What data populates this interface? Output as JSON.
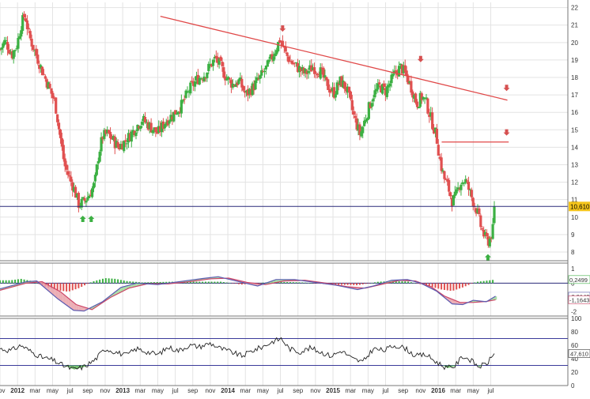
{
  "chart_data": {
    "type": "candlestick",
    "colors": {
      "up": "#3cb043",
      "down": "#e05050",
      "trend": "#e04848",
      "support": "#2a2a7a",
      "macd_line": "#5a5ab0",
      "signal_line": "#cc4466",
      "rsi_line": "#222222",
      "rsi_band": "#3a3a9a"
    },
    "x_ticks": [
      "nov",
      "2012",
      "mar",
      "may",
      "jul",
      "sep",
      "nov",
      "2013",
      "mar",
      "may",
      "jul",
      "sep",
      "nov",
      "2014",
      "mar",
      "may",
      "jul",
      "sep",
      "nov",
      "2015",
      "mar",
      "may",
      "jul",
      "sep",
      "nov",
      "2016",
      "mar",
      "may",
      "jul"
    ],
    "x_range_months": [
      -2,
      19.6
    ],
    "price_panel": {
      "y_ticks": [
        "8",
        "9",
        "10",
        "11",
        "12",
        "13",
        "14",
        "15",
        "16",
        "17",
        "18",
        "19",
        "20",
        "21",
        "22"
      ],
      "y_range": [
        7.5,
        22.3
      ],
      "last_value": "10,610",
      "last_value_num": 10.61,
      "support_level": 10.61,
      "trendline": {
        "x_start": 4.1,
        "y_start": 21.5,
        "x_end": 17.3,
        "y_end": 16.7
      },
      "horizontal_resistance": {
        "x_start": 14.8,
        "x_end": 17.35,
        "level": 14.3
      },
      "down_arrows": [
        {
          "x": 8.75,
          "y": 20.8
        },
        {
          "x": 14.0,
          "y": 19.05
        },
        {
          "x": 17.27,
          "y": 17.4
        },
        {
          "x": 17.27,
          "y": 14.85
        }
      ],
      "up_arrows": [
        {
          "x": 1.15,
          "y": 9.9
        },
        {
          "x": 1.47,
          "y": 9.9
        },
        {
          "x": 16.56,
          "y": 7.7
        }
      ],
      "key_closes": [
        {
          "x": -2,
          "y": 19.6
        },
        {
          "x": -1.8,
          "y": 20.1
        },
        {
          "x": -1.55,
          "y": 19.3
        },
        {
          "x": -1.35,
          "y": 19.9
        },
        {
          "x": -1.2,
          "y": 21.0
        },
        {
          "x": -1.05,
          "y": 21.6
        },
        {
          "x": -0.9,
          "y": 20.4
        },
        {
          "x": -0.65,
          "y": 19.4
        },
        {
          "x": -0.35,
          "y": 18.2
        },
        {
          "x": -0.1,
          "y": 17.3
        },
        {
          "x": 0.1,
          "y": 16.5
        },
        {
          "x": 0.3,
          "y": 14.5
        },
        {
          "x": 0.45,
          "y": 13.0
        },
        {
          "x": 0.65,
          "y": 12.2
        },
        {
          "x": 0.8,
          "y": 11.7
        },
        {
          "x": 1.0,
          "y": 10.7
        },
        {
          "x": 1.2,
          "y": 10.9
        },
        {
          "x": 1.4,
          "y": 11.3
        },
        {
          "x": 1.6,
          "y": 11.9
        },
        {
          "x": 1.75,
          "y": 13.6
        },
        {
          "x": 1.9,
          "y": 14.6
        },
        {
          "x": 2.1,
          "y": 14.8
        },
        {
          "x": 2.3,
          "y": 14.4
        },
        {
          "x": 2.5,
          "y": 14.0
        },
        {
          "x": 2.8,
          "y": 14.4
        },
        {
          "x": 3.1,
          "y": 15.0
        },
        {
          "x": 3.4,
          "y": 15.6
        },
        {
          "x": 3.7,
          "y": 15.2
        },
        {
          "x": 4.0,
          "y": 14.8
        },
        {
          "x": 4.3,
          "y": 15.5
        },
        {
          "x": 4.6,
          "y": 15.9
        },
        {
          "x": 4.9,
          "y": 16.4
        },
        {
          "x": 5.2,
          "y": 17.3
        },
        {
          "x": 5.5,
          "y": 17.9
        },
        {
          "x": 5.8,
          "y": 18.2
        },
        {
          "x": 6.0,
          "y": 18.7
        },
        {
          "x": 6.2,
          "y": 19.1
        },
        {
          "x": 6.4,
          "y": 18.6
        },
        {
          "x": 6.6,
          "y": 18.0
        },
        {
          "x": 6.85,
          "y": 17.6
        },
        {
          "x": 7.1,
          "y": 17.8
        },
        {
          "x": 7.35,
          "y": 17.0
        },
        {
          "x": 7.6,
          "y": 17.4
        },
        {
          "x": 7.9,
          "y": 18.0
        },
        {
          "x": 8.2,
          "y": 18.7
        },
        {
          "x": 8.45,
          "y": 19.5
        },
        {
          "x": 8.65,
          "y": 20.2
        },
        {
          "x": 8.85,
          "y": 19.4
        },
        {
          "x": 9.05,
          "y": 18.9
        },
        {
          "x": 9.3,
          "y": 18.6
        },
        {
          "x": 9.6,
          "y": 18.2
        },
        {
          "x": 9.9,
          "y": 18.6
        },
        {
          "x": 10.2,
          "y": 18.3
        },
        {
          "x": 10.45,
          "y": 17.5
        },
        {
          "x": 10.7,
          "y": 17.1
        },
        {
          "x": 10.95,
          "y": 17.8
        },
        {
          "x": 11.2,
          "y": 17.3
        },
        {
          "x": 11.45,
          "y": 15.8
        },
        {
          "x": 11.7,
          "y": 14.7
        },
        {
          "x": 11.95,
          "y": 15.9
        },
        {
          "x": 12.2,
          "y": 17.0
        },
        {
          "x": 12.45,
          "y": 17.5
        },
        {
          "x": 12.65,
          "y": 17.2
        },
        {
          "x": 12.85,
          "y": 17.7
        },
        {
          "x": 13.05,
          "y": 18.3
        },
        {
          "x": 13.25,
          "y": 18.6
        },
        {
          "x": 13.45,
          "y": 18.1
        },
        {
          "x": 13.65,
          "y": 17.4
        },
        {
          "x": 13.85,
          "y": 16.5
        },
        {
          "x": 14.05,
          "y": 16.9
        },
        {
          "x": 14.2,
          "y": 16.6
        },
        {
          "x": 14.4,
          "y": 15.6
        },
        {
          "x": 14.6,
          "y": 14.6
        },
        {
          "x": 14.75,
          "y": 13.1
        },
        {
          "x": 14.9,
          "y": 12.2
        },
        {
          "x": 15.05,
          "y": 11.7
        },
        {
          "x": 15.2,
          "y": 10.9
        },
        {
          "x": 15.35,
          "y": 11.2
        },
        {
          "x": 15.5,
          "y": 12.0
        },
        {
          "x": 15.7,
          "y": 12.1
        },
        {
          "x": 15.85,
          "y": 11.5
        },
        {
          "x": 16.0,
          "y": 10.9
        },
        {
          "x": 16.15,
          "y": 10.3
        },
        {
          "x": 16.3,
          "y": 9.4
        },
        {
          "x": 16.45,
          "y": 8.8
        },
        {
          "x": 16.6,
          "y": 8.6
        },
        {
          "x": 16.75,
          "y": 9.3
        },
        {
          "x": 16.85,
          "y": 10.61
        }
      ]
    },
    "macd_panel": {
      "y_ticks": [
        "1",
        "0",
        "-1",
        "-2"
      ],
      "y_range": [
        -2.3,
        1.4
      ],
      "labels": [
        "0,2499",
        "-0,9143",
        "-1,1643"
      ],
      "label_values": [
        0.2499,
        -0.9143,
        -1.1643
      ],
      "macd": [
        {
          "x": -2,
          "y": -0.4
        },
        {
          "x": -1.0,
          "y": 0.1
        },
        {
          "x": -0.6,
          "y": 0.15
        },
        {
          "x": 0.2,
          "y": -1.1
        },
        {
          "x": 0.8,
          "y": -1.9
        },
        {
          "x": 1.2,
          "y": -1.95
        },
        {
          "x": 1.9,
          "y": -1.3
        },
        {
          "x": 2.6,
          "y": -0.3
        },
        {
          "x": 3.2,
          "y": 0.0
        },
        {
          "x": 4.0,
          "y": -0.1
        },
        {
          "x": 4.8,
          "y": 0.1
        },
        {
          "x": 5.6,
          "y": 0.3
        },
        {
          "x": 6.3,
          "y": 0.45
        },
        {
          "x": 7.1,
          "y": 0.1
        },
        {
          "x": 7.8,
          "y": -0.2
        },
        {
          "x": 8.5,
          "y": 0.25
        },
        {
          "x": 9.2,
          "y": 0.25
        },
        {
          "x": 10.0,
          "y": 0.05
        },
        {
          "x": 10.8,
          "y": -0.15
        },
        {
          "x": 11.6,
          "y": -0.45
        },
        {
          "x": 12.2,
          "y": -0.2
        },
        {
          "x": 12.9,
          "y": 0.2
        },
        {
          "x": 13.5,
          "y": 0.25
        },
        {
          "x": 14.0,
          "y": 0.0
        },
        {
          "x": 14.6,
          "y": -0.55
        },
        {
          "x": 15.2,
          "y": -1.45
        },
        {
          "x": 15.6,
          "y": -1.5
        },
        {
          "x": 16.0,
          "y": -1.2
        },
        {
          "x": 16.5,
          "y": -1.3
        },
        {
          "x": 16.85,
          "y": -0.914
        }
      ],
      "signal": [
        {
          "x": -2,
          "y": -0.5
        },
        {
          "x": -1.0,
          "y": 0.0
        },
        {
          "x": -0.4,
          "y": 0.1
        },
        {
          "x": 0.3,
          "y": -0.6
        },
        {
          "x": 0.9,
          "y": -1.5
        },
        {
          "x": 1.5,
          "y": -1.85
        },
        {
          "x": 2.2,
          "y": -1.0
        },
        {
          "x": 2.9,
          "y": -0.35
        },
        {
          "x": 3.6,
          "y": -0.05
        },
        {
          "x": 4.4,
          "y": -0.05
        },
        {
          "x": 5.2,
          "y": 0.1
        },
        {
          "x": 6.0,
          "y": 0.3
        },
        {
          "x": 6.7,
          "y": 0.35
        },
        {
          "x": 7.4,
          "y": 0.05
        },
        {
          "x": 8.1,
          "y": -0.1
        },
        {
          "x": 8.8,
          "y": 0.15
        },
        {
          "x": 9.6,
          "y": 0.2
        },
        {
          "x": 10.4,
          "y": 0.0
        },
        {
          "x": 11.2,
          "y": -0.25
        },
        {
          "x": 11.9,
          "y": -0.35
        },
        {
          "x": 12.6,
          "y": -0.05
        },
        {
          "x": 13.2,
          "y": 0.2
        },
        {
          "x": 13.8,
          "y": 0.15
        },
        {
          "x": 14.4,
          "y": -0.25
        },
        {
          "x": 14.9,
          "y": -0.9
        },
        {
          "x": 15.5,
          "y": -1.35
        },
        {
          "x": 16.0,
          "y": -1.35
        },
        {
          "x": 16.5,
          "y": -1.28
        },
        {
          "x": 16.85,
          "y": -1.164
        }
      ],
      "histogram": [
        {
          "x": -1.6,
          "y": 0.2
        },
        {
          "x": -1.2,
          "y": 0.3
        },
        {
          "x": -0.8,
          "y": 0.15
        },
        {
          "x": -0.2,
          "y": -0.3
        },
        {
          "x": 0.2,
          "y": -0.5
        },
        {
          "x": 0.6,
          "y": -0.6
        },
        {
          "x": 1.0,
          "y": -0.35
        },
        {
          "x": 1.5,
          "y": 0.1
        },
        {
          "x": 2.0,
          "y": 0.35
        },
        {
          "x": 2.4,
          "y": 0.3
        },
        {
          "x": 2.8,
          "y": 0.15
        },
        {
          "x": 3.4,
          "y": 0.05
        },
        {
          "x": 4.6,
          "y": 0.1
        },
        {
          "x": 5.6,
          "y": 0.1
        },
        {
          "x": 6.4,
          "y": 0.1
        },
        {
          "x": 7.2,
          "y": -0.1
        },
        {
          "x": 8.4,
          "y": 0.1
        },
        {
          "x": 9.5,
          "y": 0.05
        },
        {
          "x": 10.6,
          "y": -0.1
        },
        {
          "x": 11.6,
          "y": -0.15
        },
        {
          "x": 12.4,
          "y": 0.1
        },
        {
          "x": 13.0,
          "y": 0.15
        },
        {
          "x": 13.5,
          "y": 0.12
        },
        {
          "x": 14.3,
          "y": -0.2
        },
        {
          "x": 14.8,
          "y": -0.45
        },
        {
          "x": 15.2,
          "y": -0.55
        },
        {
          "x": 15.6,
          "y": -0.3
        },
        {
          "x": 16.1,
          "y": 0.08
        },
        {
          "x": 16.85,
          "y": 0.25
        }
      ]
    },
    "rsi_panel": {
      "y_ticks": [
        "100",
        "80",
        "60",
        "40",
        "20",
        "0"
      ],
      "y_range": [
        0,
        100
      ],
      "label": "47,610",
      "label_value": 47.61,
      "bands": [
        70,
        30
      ],
      "rsi": [
        {
          "x": -2,
          "y": 55
        },
        {
          "x": -1.6,
          "y": 52
        },
        {
          "x": -1.2,
          "y": 60
        },
        {
          "x": -0.8,
          "y": 50
        },
        {
          "x": -0.4,
          "y": 42
        },
        {
          "x": 0.0,
          "y": 38
        },
        {
          "x": 0.4,
          "y": 30
        },
        {
          "x": 0.8,
          "y": 24
        },
        {
          "x": 1.2,
          "y": 28
        },
        {
          "x": 1.6,
          "y": 38
        },
        {
          "x": 2.0,
          "y": 55
        },
        {
          "x": 2.4,
          "y": 50
        },
        {
          "x": 2.8,
          "y": 45
        },
        {
          "x": 3.2,
          "y": 55
        },
        {
          "x": 3.6,
          "y": 50
        },
        {
          "x": 4.0,
          "y": 46
        },
        {
          "x": 4.4,
          "y": 57
        },
        {
          "x": 4.8,
          "y": 52
        },
        {
          "x": 5.2,
          "y": 60
        },
        {
          "x": 5.6,
          "y": 58
        },
        {
          "x": 6.0,
          "y": 63
        },
        {
          "x": 6.4,
          "y": 55
        },
        {
          "x": 6.8,
          "y": 50
        },
        {
          "x": 7.2,
          "y": 44
        },
        {
          "x": 7.6,
          "y": 52
        },
        {
          "x": 8.0,
          "y": 58
        },
        {
          "x": 8.4,
          "y": 66
        },
        {
          "x": 8.7,
          "y": 70
        },
        {
          "x": 9.0,
          "y": 55
        },
        {
          "x": 9.4,
          "y": 50
        },
        {
          "x": 9.8,
          "y": 56
        },
        {
          "x": 10.2,
          "y": 50
        },
        {
          "x": 10.6,
          "y": 44
        },
        {
          "x": 11.0,
          "y": 52
        },
        {
          "x": 11.4,
          "y": 40
        },
        {
          "x": 11.8,
          "y": 35
        },
        {
          "x": 12.2,
          "y": 55
        },
        {
          "x": 12.6,
          "y": 52
        },
        {
          "x": 13.0,
          "y": 60
        },
        {
          "x": 13.4,
          "y": 56
        },
        {
          "x": 13.8,
          "y": 44
        },
        {
          "x": 14.2,
          "y": 46
        },
        {
          "x": 14.6,
          "y": 35
        },
        {
          "x": 15.0,
          "y": 26
        },
        {
          "x": 15.3,
          "y": 29
        },
        {
          "x": 15.6,
          "y": 44
        },
        {
          "x": 15.9,
          "y": 38
        },
        {
          "x": 16.2,
          "y": 28
        },
        {
          "x": 16.5,
          "y": 32
        },
        {
          "x": 16.7,
          "y": 42
        },
        {
          "x": 16.85,
          "y": 47.61
        }
      ]
    }
  }
}
